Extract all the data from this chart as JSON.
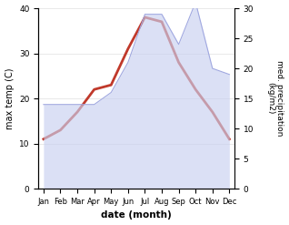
{
  "months": [
    "Jan",
    "Feb",
    "Mar",
    "Apr",
    "May",
    "Jun",
    "Jul",
    "Aug",
    "Sep",
    "Oct",
    "Nov",
    "Dec"
  ],
  "month_positions": [
    0,
    1,
    2,
    3,
    4,
    5,
    6,
    7,
    8,
    9,
    10,
    11
  ],
  "temp": [
    11,
    13,
    17,
    22,
    23,
    31,
    38,
    37,
    28,
    22,
    17,
    11
  ],
  "precip": [
    14,
    14,
    14,
    14,
    16,
    21,
    29,
    29,
    24,
    31,
    20,
    19
  ],
  "temp_color": "#c0392b",
  "precip_fill_color": "#c8d0f0",
  "precip_line_color": "#a0a8e0",
  "ylabel_left": "max temp (C)",
  "ylabel_right": "med. precipitation\n(kg/m2)",
  "xlabel": "date (month)",
  "ylim_left": [
    0,
    40
  ],
  "ylim_right": [
    0,
    30
  ],
  "yticks_left": [
    0,
    10,
    20,
    30,
    40
  ],
  "yticks_right": [
    0,
    5,
    10,
    15,
    20,
    25,
    30
  ],
  "bg_color": "#ffffff",
  "temp_linewidth": 2.0,
  "figsize": [
    3.18,
    2.47
  ],
  "dpi": 100
}
